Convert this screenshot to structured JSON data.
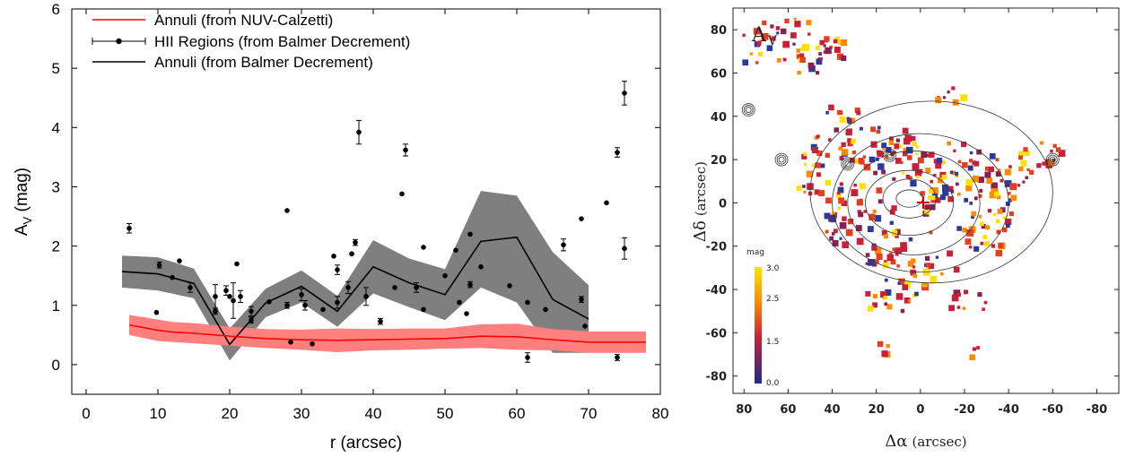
{
  "chart_data": [
    {
      "type": "scatter",
      "xlabel": "r (arcsec)",
      "ylabel": "A",
      "ylabel_sub": "V",
      "ylabel_unit": " (mag)",
      "xlim": [
        -2,
        80
      ],
      "ylim": [
        -0.5,
        6
      ],
      "xticks": [
        0,
        10,
        20,
        30,
        40,
        50,
        60,
        70,
        80
      ],
      "yticks": [
        0,
        1,
        2,
        3,
        4,
        5,
        6
      ],
      "legend": [
        "Annuli (from NUV-Calzetti)",
        "HII Regions (from Balmer Decrement)",
        "Annuli (from Balmer Decrement)"
      ],
      "legend_position": "top-left",
      "colors": {
        "nuv": "#ff0000",
        "nuv_band": "#ff7f7f",
        "balmer_band": "#7f7f7f",
        "points": "#000000"
      },
      "series": [
        {
          "name": "Annuli (from NUV-Calzetti)",
          "x": [
            6,
            10,
            12,
            15,
            20,
            25,
            30,
            35,
            40,
            45,
            50,
            55,
            60,
            65,
            70,
            75,
            78
          ],
          "y": [
            0.67,
            0.58,
            0.55,
            0.53,
            0.48,
            0.44,
            0.42,
            0.41,
            0.42,
            0.43,
            0.44,
            0.48,
            0.47,
            0.42,
            0.38,
            0.38,
            0.38
          ],
          "lower": [
            0.5,
            0.4,
            0.38,
            0.36,
            0.32,
            0.28,
            0.25,
            0.21,
            0.24,
            0.25,
            0.27,
            0.28,
            0.25,
            0.24,
            0.2,
            0.2,
            0.2
          ],
          "upper": [
            0.84,
            0.76,
            0.72,
            0.7,
            0.64,
            0.6,
            0.59,
            0.61,
            0.6,
            0.61,
            0.61,
            0.68,
            0.69,
            0.6,
            0.56,
            0.56,
            0.56
          ]
        },
        {
          "name": "Annuli (from Balmer Decrement)",
          "x": [
            5,
            10,
            15,
            20,
            25,
            30,
            35,
            40,
            45,
            50,
            55,
            60,
            65,
            70
          ],
          "y": [
            1.57,
            1.53,
            1.37,
            0.34,
            1.04,
            1.32,
            0.9,
            1.65,
            1.38,
            1.18,
            2.08,
            2.15,
            1.1,
            0.77
          ],
          "lower": [
            1.3,
            1.25,
            1.12,
            0.07,
            0.8,
            1.05,
            0.64,
            1.2,
            0.97,
            0.75,
            1.3,
            1.05,
            0.2,
            0.2
          ],
          "upper": [
            1.84,
            1.81,
            1.62,
            0.61,
            1.28,
            1.59,
            1.16,
            2.1,
            1.79,
            1.61,
            2.93,
            2.85,
            1.9,
            1.34
          ]
        },
        {
          "name": "HII Regions (from Balmer Decrement)",
          "points": [
            [
              6,
              2.3,
              0.08
            ],
            [
              9.8,
              0.88,
              0
            ],
            [
              10.2,
              1.68,
              0.05
            ],
            [
              12,
              1.47,
              0
            ],
            [
              13,
              1.75,
              0
            ],
            [
              14.5,
              1.3,
              0.08
            ],
            [
              18,
              1.15,
              0.2
            ],
            [
              18,
              0.9,
              0.05
            ],
            [
              19.5,
              1.25,
              0.08
            ],
            [
              20,
              1.15,
              0
            ],
            [
              20.5,
              1.08,
              0.3
            ],
            [
              21,
              1.7,
              0
            ],
            [
              21.5,
              1.15,
              0.1
            ],
            [
              23,
              0.9,
              0.08
            ],
            [
              23,
              0.75,
              0.05
            ],
            [
              25.5,
              1.06,
              0
            ],
            [
              28,
              1.0,
              0.05
            ],
            [
              28,
              2.6,
              0
            ],
            [
              28.5,
              0.38,
              0
            ],
            [
              30,
              1.18,
              0.1
            ],
            [
              30.5,
              1.0,
              0.08
            ],
            [
              31.5,
              0.35,
              0
            ],
            [
              33,
              0.93,
              0
            ],
            [
              34.5,
              1.83,
              0
            ],
            [
              35,
              1.05,
              0.1
            ],
            [
              35,
              1.6,
              0.08
            ],
            [
              36.5,
              1.3,
              0.1
            ],
            [
              37,
              1.87,
              0
            ],
            [
              37.5,
              2.06,
              0.05
            ],
            [
              38,
              3.92,
              0.2
            ],
            [
              39,
              1.15,
              0.15
            ],
            [
              41,
              0.73,
              0.05
            ],
            [
              43,
              1.3,
              0
            ],
            [
              44,
              2.88,
              0
            ],
            [
              44.5,
              3.62,
              0.1
            ],
            [
              46,
              1.3,
              0.08
            ],
            [
              47,
              0.93,
              0
            ],
            [
              47,
              1.98,
              0
            ],
            [
              50,
              1.5,
              0
            ],
            [
              51.5,
              1.93,
              0
            ],
            [
              52,
              1.05,
              0
            ],
            [
              53,
              0.86,
              0
            ],
            [
              53.5,
              2.2,
              0
            ],
            [
              53.5,
              1.35,
              0.05
            ],
            [
              55,
              1.65,
              0
            ],
            [
              59,
              1.33,
              0
            ],
            [
              61.5,
              0.12,
              0.08
            ],
            [
              61.5,
              1.05,
              0
            ],
            [
              64,
              0.93,
              0
            ],
            [
              66.5,
              2.02,
              0.1
            ],
            [
              69,
              2.46,
              0
            ],
            [
              69,
              1.1,
              0.05
            ],
            [
              69.5,
              0.65,
              0
            ],
            [
              72.5,
              2.73,
              0
            ],
            [
              74,
              0.12,
              0.05
            ],
            [
              74,
              3.58,
              0.08
            ],
            [
              75,
              4.58,
              0.2
            ],
            [
              75,
              1.96,
              0.18
            ]
          ]
        }
      ]
    },
    {
      "type": "heatmap",
      "title": "A",
      "title_sub": "V",
      "xlabel": "Δα",
      "xlabel_unit": "(arcsec)",
      "ylabel": "Δδ",
      "ylabel_unit": "(arcsec)",
      "xlim": [
        85,
        -90
      ],
      "ylim": [
        -88,
        90
      ],
      "xticks": [
        80,
        60,
        40,
        20,
        0,
        -20,
        -40,
        -60,
        -80
      ],
      "yticks": [
        80,
        60,
        40,
        20,
        0,
        -20,
        -40,
        -60,
        -80
      ],
      "colorbar": {
        "label": "mag",
        "ticks": [
          "3.0",
          "2.5",
          "1.5",
          "0.0"
        ],
        "range": [
          0.0,
          3.0
        ]
      },
      "colors": {
        "low": "#2a3a9a",
        "mid": "#c8203a",
        "high": "#ffe000",
        "contour": "#333333",
        "center_marker": "#d00000"
      }
    }
  ]
}
